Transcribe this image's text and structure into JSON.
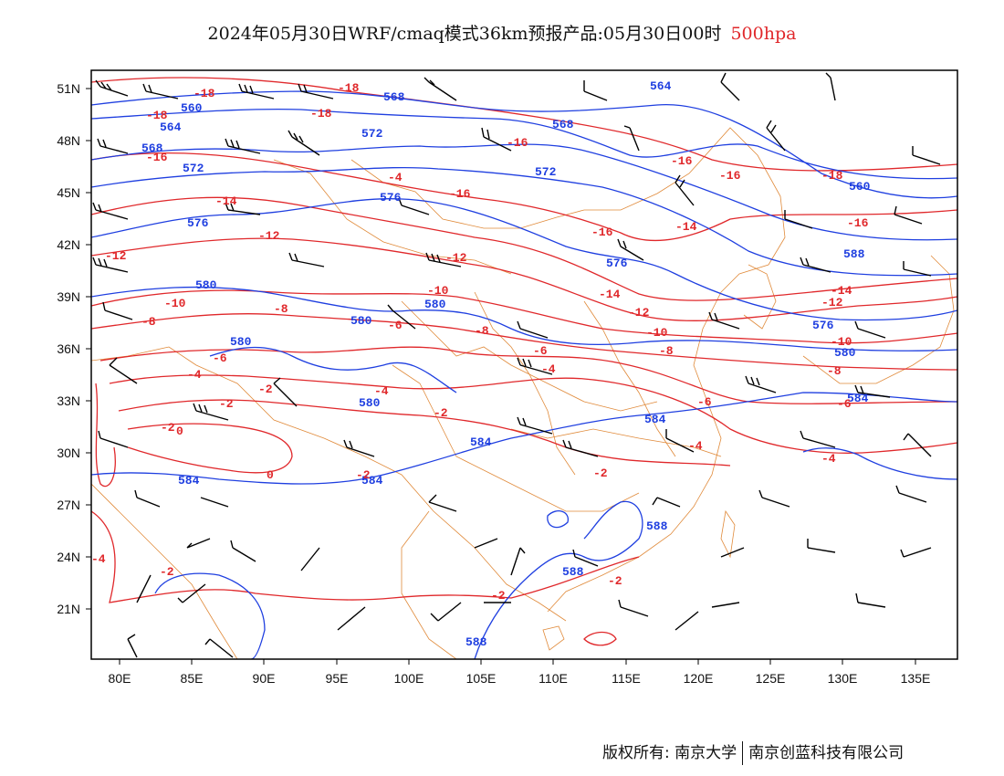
{
  "title": {
    "main": "2024年05月30日WRF/cmaq模式36km预报产品:05月30日00时",
    "level": "500hpa"
  },
  "footer": {
    "copyright_label": "版权所有:",
    "owner_1": "南京大学",
    "owner_2": "南京创蓝科技有限公司"
  },
  "axes": {
    "lat_labels": [
      "51N",
      "48N",
      "45N",
      "42N",
      "39N",
      "36N",
      "33N",
      "30N",
      "27N",
      "24N",
      "21N"
    ],
    "lon_labels": [
      "80E",
      "85E",
      "90E",
      "95E",
      "100E",
      "105E",
      "110E",
      "115E",
      "120E",
      "125E",
      "130E",
      "135E"
    ]
  },
  "colors": {
    "geopotential_height": "#1f3fe0",
    "temperature": "#e0282b",
    "boundaries": "#e08a3a",
    "wind_barbs": "#000000"
  },
  "height_labels": [
    "560",
    "564",
    "568",
    "572",
    "576",
    "580",
    "584",
    "588"
  ],
  "temperature_labels": [
    "-18",
    "-16",
    "-14",
    "-12",
    "-10",
    "-8",
    "-6",
    "-4",
    "-2",
    "0"
  ]
}
